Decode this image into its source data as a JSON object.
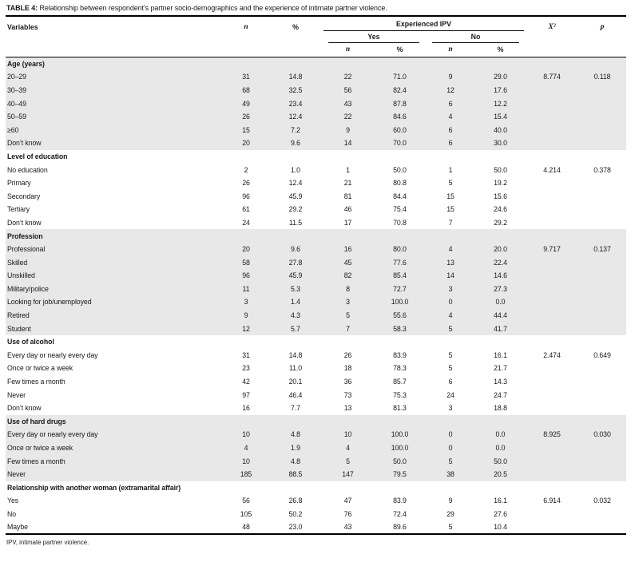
{
  "colors": {
    "shaded_row": "#e8e8e8",
    "rule": "#000000",
    "text": "#1a1a1a"
  },
  "table": {
    "title_label": "TABLE 4:",
    "title_text": "Relationship between respondent’s partner socio-demographics and the experience of intimate partner violence.",
    "footnote": "IPV, intimate partner violence.",
    "header": {
      "variables": "Variables",
      "n": "n",
      "pct": "%",
      "experienced_ipv": "Experienced IPV",
      "yes": "Yes",
      "no": "No",
      "yes_n": "n",
      "yes_pct": "%",
      "no_n": "n",
      "no_pct": "%",
      "chi_square": "X²",
      "p": "p"
    },
    "sections": [
      {
        "header": "Age (years)",
        "shaded": true,
        "rows": [
          [
            "20–29",
            "31",
            "14.8",
            "22",
            "71.0",
            "9",
            "29.0",
            "8.774",
            "0.118"
          ],
          [
            "30–39",
            "68",
            "32.5",
            "56",
            "82.4",
            "12",
            "17.6",
            "",
            ""
          ],
          [
            "40–49",
            "49",
            "23.4",
            "43",
            "87.8",
            "6",
            "12.2",
            "",
            ""
          ],
          [
            "50–59",
            "26",
            "12.4",
            "22",
            "84.6",
            "4",
            "15.4",
            "",
            ""
          ],
          [
            "≥60",
            "15",
            "7.2",
            "9",
            "60.0",
            "6",
            "40.0",
            "",
            ""
          ],
          [
            "Don’t know",
            "20",
            "9.6",
            "14",
            "70.0",
            "6",
            "30.0",
            "",
            ""
          ]
        ]
      },
      {
        "header": "Level of education",
        "shaded": false,
        "rows": [
          [
            "No education",
            "2",
            "1.0",
            "1",
            "50.0",
            "1",
            "50.0",
            "4.214",
            "0.378"
          ],
          [
            "Primary",
            "26",
            "12.4",
            "21",
            "80.8",
            "5",
            "19.2",
            "",
            ""
          ],
          [
            "Secondary",
            "96",
            "45.9",
            "81",
            "84.4",
            "15",
            "15.6",
            "",
            ""
          ],
          [
            "Tertiary",
            "61",
            "29.2",
            "46",
            "75.4",
            "15",
            "24.6",
            "",
            ""
          ],
          [
            "Don’t know",
            "24",
            "11.5",
            "17",
            "70.8",
            "7",
            "29.2",
            "",
            ""
          ]
        ]
      },
      {
        "header": "Profession",
        "shaded": true,
        "rows": [
          [
            "Professional",
            "20",
            "9.6",
            "16",
            "80.0",
            "4",
            "20.0",
            "9.717",
            "0.137"
          ],
          [
            "Skilled",
            "58",
            "27.8",
            "45",
            "77.6",
            "13",
            "22.4",
            "",
            ""
          ],
          [
            "Unskilled",
            "96",
            "45.9",
            "82",
            "85.4",
            "14",
            "14.6",
            "",
            ""
          ],
          [
            "Military/police",
            "11",
            "5.3",
            "8",
            "72.7",
            "3",
            "27.3",
            "",
            ""
          ],
          [
            "Looking for job/unemployed",
            "3",
            "1.4",
            "3",
            "100.0",
            "0",
            "0.0",
            "",
            ""
          ],
          [
            "Retired",
            "9",
            "4.3",
            "5",
            "55.6",
            "4",
            "44.4",
            "",
            ""
          ],
          [
            "Student",
            "12",
            "5.7",
            "7",
            "58.3",
            "5",
            "41.7",
            "",
            ""
          ]
        ]
      },
      {
        "header": "Use of alcohol",
        "shaded": false,
        "rows": [
          [
            "Every day or nearly every day",
            "31",
            "14.8",
            "26",
            "83.9",
            "5",
            "16.1",
            "2.474",
            "0.649"
          ],
          [
            "Once or twice a week",
            "23",
            "11.0",
            "18",
            "78.3",
            "5",
            "21.7",
            "",
            ""
          ],
          [
            "Few times a month",
            "42",
            "20.1",
            "36",
            "85.7",
            "6",
            "14.3",
            "",
            ""
          ],
          [
            "Never",
            "97",
            "46.4",
            "73",
            "75.3",
            "24",
            "24.7",
            "",
            ""
          ],
          [
            "Don’t know",
            "16",
            "7.7",
            "13",
            "81.3",
            "3",
            "18.8",
            "",
            ""
          ]
        ]
      },
      {
        "header": "Use of hard drugs",
        "shaded": true,
        "rows": [
          [
            "Every day or nearly every day",
            "10",
            "4.8",
            "10",
            "100.0",
            "0",
            "0.0",
            "8.925",
            "0.030"
          ],
          [
            "Once or twice a week",
            "4",
            "1.9",
            "4",
            "100.0",
            "0",
            "0.0",
            "",
            ""
          ],
          [
            "Few times a month",
            "10",
            "4.8",
            "5",
            "50.0",
            "5",
            "50.0",
            "",
            ""
          ],
          [
            "Never",
            "185",
            "88.5",
            "147",
            "79.5",
            "38",
            "20.5",
            "",
            ""
          ]
        ]
      },
      {
        "header": "Relationship with another woman (extramarital affair)",
        "shaded": false,
        "rows": [
          [
            "Yes",
            "56",
            "26.8",
            "47",
            "83.9",
            "9",
            "16.1",
            "6.914",
            "0.032"
          ],
          [
            "No",
            "105",
            "50.2",
            "76",
            "72.4",
            "29",
            "27.6",
            "",
            ""
          ],
          [
            "Maybe",
            "48",
            "23.0",
            "43",
            "89.6",
            "5",
            "10.4",
            "",
            ""
          ]
        ]
      }
    ]
  }
}
